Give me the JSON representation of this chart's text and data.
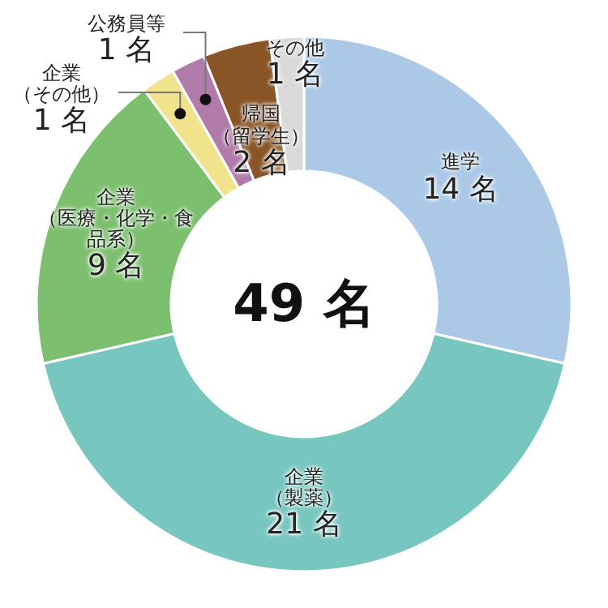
{
  "chart_data": {
    "type": "donut",
    "categories": [
      "進学",
      "企業（製薬）",
      "企業（医療・化学・食品系）",
      "企業（その他）",
      "公務員等",
      "帰国（留学生）",
      "その他"
    ],
    "values": [
      14,
      21,
      9,
      1,
      1,
      2,
      1
    ],
    "colors": [
      "#abc9e7",
      "#77c6bf",
      "#7cbf6e",
      "#f1e38b",
      "#b07aa9",
      "#8a5526",
      "#d9d9d9"
    ],
    "value_labels": [
      "14 名",
      "21 名",
      "9 名",
      "1 名",
      "1 名",
      "2 名",
      "1 名"
    ],
    "annotations": [
      "49 名"
    ]
  }
}
